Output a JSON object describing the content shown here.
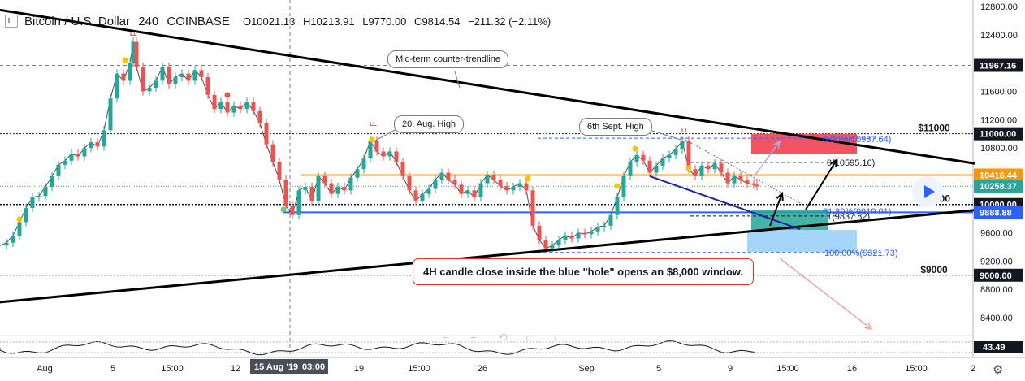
{
  "header": {
    "title": "Bitcoin / U.S. Dollar",
    "interval": "240",
    "exchange": "COINBASE",
    "o_label": "O",
    "o_value": "10021.13",
    "h_label": "H",
    "h_value": "10213.91",
    "l_label": "L",
    "l_value": "9770.00",
    "c_label": "C",
    "c_value": "9814.54",
    "change": "−211.32 (−2.11%)"
  },
  "chart_data": {
    "type": "line",
    "symbol": "BTCUSD",
    "y_axis": {
      "ylim": [
        8200,
        12900
      ],
      "ticks": [
        "12800.00",
        "12400.00",
        "12000.00",
        "11600.00",
        "11200.00",
        "10800.00",
        "10400.00",
        "10000.00",
        "9600.00",
        "9200.00",
        "8800.00",
        "8400.00"
      ],
      "tick_values": [
        12800,
        12400,
        12000,
        11600,
        11200,
        10800,
        10400,
        10000,
        9600,
        9200,
        8800,
        8400
      ]
    },
    "x_axis": {
      "ticks": [
        "Aug",
        "5",
        "15:00",
        "12",
        "15 Aug '19",
        "03:00",
        "19",
        "15:00",
        "26",
        "Sep",
        "5",
        "9",
        "15:00",
        "16",
        "15:00",
        "2"
      ]
    },
    "price_labels": [
      {
        "text": "11967.16",
        "value": 11967.16,
        "color": "#ffffff",
        "bg": "#131722"
      },
      {
        "text": "11000.00",
        "value": 11000.0,
        "color": "#ffffff",
        "bg": "#131722"
      },
      {
        "text": "10416.44",
        "value": 10416.44,
        "color": "#ffffff",
        "bg": "#ff9800"
      },
      {
        "text": "10258.37",
        "value": 10258.37,
        "color": "#ffffff",
        "bg": "#26a69a"
      },
      {
        "text": "10000.00",
        "value": 10000.0,
        "color": "#ffffff",
        "bg": "#131722"
      },
      {
        "text": "9888.88",
        "value": 9888.88,
        "color": "#ffffff",
        "bg": "#2962ff"
      },
      {
        "text": "9000.00",
        "value": 9000.0,
        "color": "#ffffff",
        "bg": "#131722"
      }
    ],
    "level_labels": [
      {
        "text": "$11000",
        "value": 11000
      },
      {
        "text": "$10000",
        "value": 10000
      },
      {
        "text": "$9000",
        "value": 9000
      }
    ],
    "fib_labels": [
      {
        "text": "0.00%(10937.64)",
        "value": 10937.64
      },
      {
        "text": "0(10595.16)",
        "value": 10595.16
      },
      {
        "text": "61.80%(9919.01)",
        "value": 9919.01
      },
      {
        "text": "1(9837.82)",
        "value": 9837.82
      },
      {
        "text": "100.00%(9321.73)",
        "value": 9321.73
      }
    ],
    "candle_path": [
      [
        0,
        9420
      ],
      [
        8,
        9460
      ],
      [
        16,
        9560
      ],
      [
        24,
        9750
      ],
      [
        32,
        9950
      ],
      [
        40,
        10100
      ],
      [
        48,
        10120
      ],
      [
        56,
        10250
      ],
      [
        64,
        10400
      ],
      [
        72,
        10560
      ],
      [
        80,
        10620
      ],
      [
        88,
        10720
      ],
      [
        96,
        10680
      ],
      [
        104,
        10800
      ],
      [
        112,
        10880
      ],
      [
        120,
        10820
      ],
      [
        128,
        11050
      ],
      [
        136,
        11500
      ],
      [
        144,
        11850
      ],
      [
        152,
        11750
      ],
      [
        160,
        12000
      ],
      [
        164,
        12300
      ],
      [
        168,
        11950
      ],
      [
        176,
        11600
      ],
      [
        184,
        11650
      ],
      [
        192,
        11750
      ],
      [
        200,
        11950
      ],
      [
        208,
        11700
      ],
      [
        216,
        11800
      ],
      [
        224,
        11850
      ],
      [
        232,
        11750
      ],
      [
        240,
        11900
      ],
      [
        248,
        11800
      ],
      [
        256,
        11550
      ],
      [
        264,
        11350
      ],
      [
        272,
        11450
      ],
      [
        280,
        11300
      ],
      [
        288,
        11400
      ],
      [
        296,
        11350
      ],
      [
        304,
        11450
      ],
      [
        312,
        11320
      ],
      [
        320,
        11150
      ],
      [
        328,
        10850
      ],
      [
        336,
        10600
      ],
      [
        344,
        10350
      ],
      [
        352,
        9980
      ],
      [
        360,
        9850
      ],
      [
        368,
        10200
      ],
      [
        376,
        10250
      ],
      [
        384,
        10050
      ],
      [
        392,
        10400
      ],
      [
        400,
        10300
      ],
      [
        408,
        10150
      ],
      [
        416,
        10250
      ],
      [
        424,
        10200
      ],
      [
        432,
        10380
      ],
      [
        440,
        10500
      ],
      [
        448,
        10650
      ],
      [
        456,
        10900
      ],
      [
        464,
        10750
      ],
      [
        472,
        10680
      ],
      [
        480,
        10750
      ],
      [
        488,
        10600
      ],
      [
        496,
        10400
      ],
      [
        504,
        10200
      ],
      [
        512,
        10050
      ],
      [
        520,
        10150
      ],
      [
        528,
        10220
      ],
      [
        536,
        10350
      ],
      [
        544,
        10450
      ],
      [
        552,
        10350
      ],
      [
        560,
        10280
      ],
      [
        568,
        10150
      ],
      [
        576,
        10200
      ],
      [
        584,
        10100
      ],
      [
        592,
        10300
      ],
      [
        600,
        10420
      ],
      [
        608,
        10350
      ],
      [
        616,
        10260
      ],
      [
        624,
        10200
      ],
      [
        632,
        10250
      ],
      [
        640,
        10300
      ],
      [
        648,
        10200
      ],
      [
        656,
        9700
      ],
      [
        664,
        9500
      ],
      [
        672,
        9380
      ],
      [
        680,
        9420
      ],
      [
        688,
        9500
      ],
      [
        696,
        9560
      ],
      [
        704,
        9520
      ],
      [
        712,
        9600
      ],
      [
        720,
        9580
      ],
      [
        728,
        9620
      ],
      [
        736,
        9680
      ],
      [
        744,
        9700
      ],
      [
        752,
        9850
      ],
      [
        760,
        10100
      ],
      [
        768,
        10400
      ],
      [
        776,
        10600
      ],
      [
        784,
        10700
      ],
      [
        792,
        10620
      ],
      [
        800,
        10450
      ],
      [
        808,
        10550
      ],
      [
        816,
        10650
      ],
      [
        824,
        10700
      ],
      [
        832,
        10780
      ],
      [
        840,
        10900
      ],
      [
        848,
        10500
      ],
      [
        856,
        10400
      ],
      [
        864,
        10550
      ],
      [
        872,
        10500
      ],
      [
        880,
        10580
      ],
      [
        888,
        10450
      ],
      [
        896,
        10300
      ],
      [
        904,
        10400
      ],
      [
        912,
        10350
      ],
      [
        920,
        10300
      ],
      [
        928,
        10280
      ],
      [
        932,
        10258
      ]
    ],
    "trendlines": [
      {
        "name": "mid-term counter-trendline",
        "from": [
          0,
          12750
        ],
        "to": [
          1200,
          10580
        ]
      },
      {
        "name": "support trendline",
        "from": [
          0,
          8620
        ],
        "to": [
          1200,
          9920
        ]
      }
    ],
    "oscillator_value": "43.49"
  },
  "annotations": {
    "counter_trendline": "Mid-term counter-trendline",
    "aug_high": "20. Aug. High",
    "sept_high": "6th Sept. High",
    "hole_note": "4H candle close inside the blue \"hole\" opens an $8,000 window.",
    "ll_marks": [
      "LL",
      "LL",
      "LL"
    ]
  },
  "colors": {
    "up": "#26a69a",
    "down": "#ef5350",
    "orange_line": "#ff9800",
    "blue_line": "#2962ff",
    "green_line": "#4caf50",
    "red_box": "#f23645",
    "green_box": "#26a69a",
    "blue_box": "#90caf9"
  }
}
